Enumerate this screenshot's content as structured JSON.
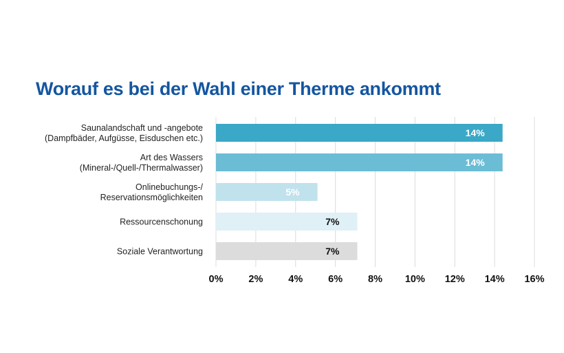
{
  "chart_data": {
    "type": "bar",
    "orientation": "horizontal",
    "title": "Worauf es bei der Wahl einer Therme ankommt",
    "categories": [
      [
        "Saunalandschaft und -angebote",
        "(Dampfbäder, Aufgüsse, Eisduschen etc.)"
      ],
      [
        "Art des Wassers",
        "(Mineral-/Quell-/Thermalwasser)"
      ],
      [
        "Onlinebuchungs-/",
        "Reservationsmöglichkeiten"
      ],
      [
        "Ressourcenschonung"
      ],
      [
        "Soziale Verantwortung"
      ]
    ],
    "values": [
      14.4,
      14.4,
      5.1,
      7.1,
      7.1
    ],
    "data_labels": [
      "14%",
      "14%",
      "5%",
      "7%",
      "7%"
    ],
    "bar_colors": [
      "#3aa8c6",
      "#6bbcd5",
      "#c0e2ec",
      "#dff0f6",
      "#dcdcdc"
    ],
    "label_colors": [
      "#ffffff",
      "#ffffff",
      "#ffffff",
      "#111111",
      "#111111"
    ],
    "xlim": [
      0,
      16
    ],
    "xticks": [
      0,
      2,
      4,
      6,
      8,
      10,
      12,
      14,
      16
    ],
    "xtick_labels": [
      "0%",
      "2%",
      "4%",
      "6%",
      "8%",
      "10%",
      "12%",
      "14%",
      "16%"
    ],
    "grid": true,
    "legend": false
  }
}
